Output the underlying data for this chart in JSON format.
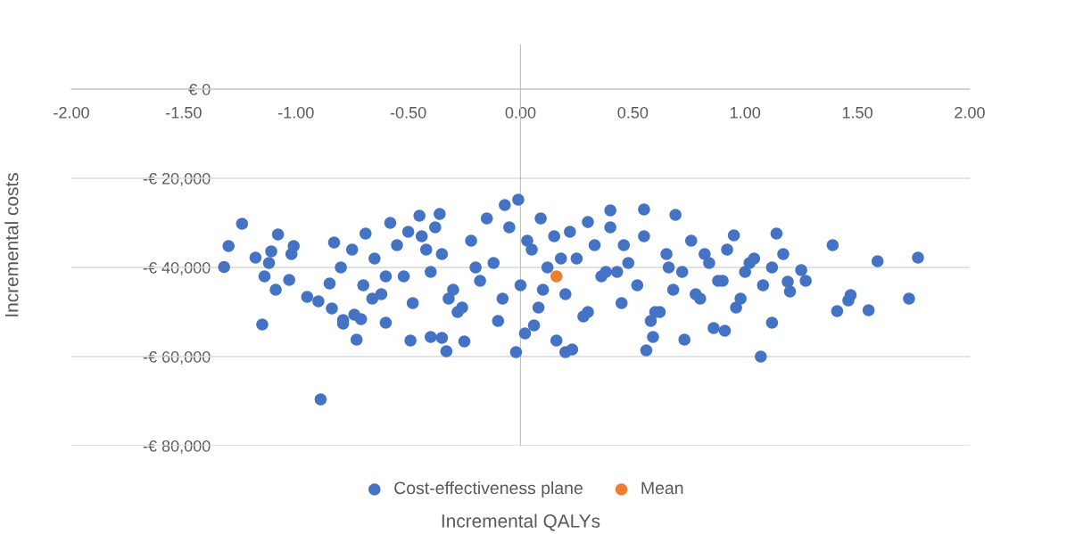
{
  "chart_data": {
    "type": "scatter",
    "xlabel": "Incremental QALYs",
    "ylabel": "Incremental costs",
    "xlim": [
      -2,
      2
    ],
    "ylim": [
      -80000,
      10000
    ],
    "xticks": [
      {
        "value": -2,
        "label": "-2.00"
      },
      {
        "value": -1.5,
        "label": "-1.50"
      },
      {
        "value": -1,
        "label": "-1.00"
      },
      {
        "value": -0.5,
        "label": "-0.50"
      },
      {
        "value": 0,
        "label": "0.00"
      },
      {
        "value": 0.5,
        "label": "0.50"
      },
      {
        "value": 1,
        "label": "1.00"
      },
      {
        "value": 1.5,
        "label": "1.50"
      },
      {
        "value": 2,
        "label": "2.00"
      }
    ],
    "yticks": [
      {
        "value": -80000,
        "label": "-€ 80,000"
      },
      {
        "value": -60000,
        "label": "-€ 60,000"
      },
      {
        "value": -40000,
        "label": "-€ 40,000"
      },
      {
        "value": -20000,
        "label": "-€ 20,000"
      },
      {
        "value": 0,
        "label": "€ 0"
      }
    ],
    "grid": "y",
    "legend": "bottom",
    "marker": "circle",
    "series": [
      {
        "name": "Cost-effectiveness plane",
        "color": "#4472c4",
        "x": [
          -1.32,
          -1.3,
          -1.24,
          -1.18,
          -1.15,
          -1.14,
          -1.12,
          -1.11,
          -1.09,
          -1.08,
          -1.03,
          -1.02,
          -1.01,
          -0.95,
          -0.9,
          -0.89,
          -0.85,
          -0.84,
          -0.83,
          -0.79,
          -0.79,
          -0.74,
          -0.71,
          -0.73,
          -0.69,
          -0.6,
          -0.58,
          -0.49,
          -0.45,
          -0.4,
          -0.36,
          -0.35,
          -0.33,
          -0.25,
          -0.15,
          -0.07,
          -0.01,
          -0.02,
          0.02,
          0.09,
          0.16,
          0.2,
          0.23,
          0.3,
          0.4,
          0.56,
          0.55,
          0.59,
          0.69,
          0.73,
          0.86,
          0.91,
          0.95,
          1.07,
          1.12,
          1.14,
          1.19,
          1.2,
          1.25,
          1.27,
          1.39,
          1.41,
          1.46,
          1.47,
          1.55,
          1.59,
          1.73,
          1.77,
          -0.8,
          -0.75,
          -0.7,
          -0.65,
          -0.62,
          -0.55,
          -0.52,
          -0.48,
          -0.44,
          -0.4,
          -0.35,
          -0.3,
          -0.28,
          -0.22,
          -0.18,
          -0.12,
          -0.08,
          -0.05,
          0.0,
          0.05,
          0.08,
          0.12,
          0.15,
          0.2,
          0.25,
          0.28,
          0.33,
          0.36,
          0.4,
          0.45,
          0.48,
          0.52,
          0.55,
          0.6,
          0.65,
          0.68,
          0.72,
          0.76,
          0.8,
          0.84,
          0.88,
          0.92,
          0.96,
          1.0,
          1.04,
          1.08,
          1.12,
          1.17,
          -0.6,
          -0.5,
          -0.42,
          -0.32,
          -0.2,
          -0.1,
          0.03,
          0.1,
          0.18,
          0.3,
          0.38,
          0.46,
          0.58,
          0.66,
          0.78,
          0.9,
          1.02,
          -0.66,
          -0.38,
          -0.26,
          0.06,
          0.22,
          0.43,
          0.62,
          0.82,
          0.98
        ],
        "values": [
          -39900,
          -35200,
          -30200,
          -37800,
          -52800,
          -42000,
          -39000,
          -36400,
          -45000,
          -32600,
          -42800,
          -37000,
          -35200,
          -46600,
          -47600,
          -69600,
          -43600,
          -49200,
          -34400,
          -51800,
          -52600,
          -50600,
          -51600,
          -56200,
          -32400,
          -52400,
          -30000,
          -56400,
          -28400,
          -55600,
          -28000,
          -55800,
          -58800,
          -56600,
          -29000,
          -26000,
          -24800,
          -59000,
          -54800,
          -29000,
          -56400,
          -59000,
          -58400,
          -29800,
          -27200,
          -58600,
          -27000,
          -55600,
          -28200,
          -56200,
          -53600,
          -54200,
          -32800,
          -60000,
          -52400,
          -32400,
          -43200,
          -45400,
          -40600,
          -43000,
          -35000,
          -49800,
          -47400,
          -46200,
          -49600,
          -38600,
          -47000,
          -37800,
          -40000,
          -36000,
          -44000,
          -38000,
          -46000,
          -35000,
          -42000,
          -48000,
          -33000,
          -41000,
          -37000,
          -45000,
          -50000,
          -34000,
          -43000,
          -39000,
          -47000,
          -31000,
          -44000,
          -36000,
          -49000,
          -40000,
          -33000,
          -46000,
          -38000,
          -51000,
          -35000,
          -42000,
          -31000,
          -48000,
          -39000,
          -44000,
          -33000,
          -50000,
          -37000,
          -45000,
          -41000,
          -34000,
          -47000,
          -39000,
          -43000,
          -36000,
          -49000,
          -41000,
          -38000,
          -44000,
          -40000,
          -37000,
          -42000,
          -32000,
          -36000,
          -47000,
          -40000,
          -52000,
          -34000,
          -45000,
          -38000,
          -50000,
          -41000,
          -35000,
          -52000,
          -40000,
          -46000,
          -43000,
          -39000,
          -47000,
          -31000,
          -49000,
          -53000,
          -32000,
          -41000,
          -50000,
          -37000,
          -47000
        ]
      },
      {
        "name": "Mean",
        "color": "#ed7d31",
        "x": [
          0.16
        ],
        "values": [
          -42000
        ]
      }
    ]
  }
}
